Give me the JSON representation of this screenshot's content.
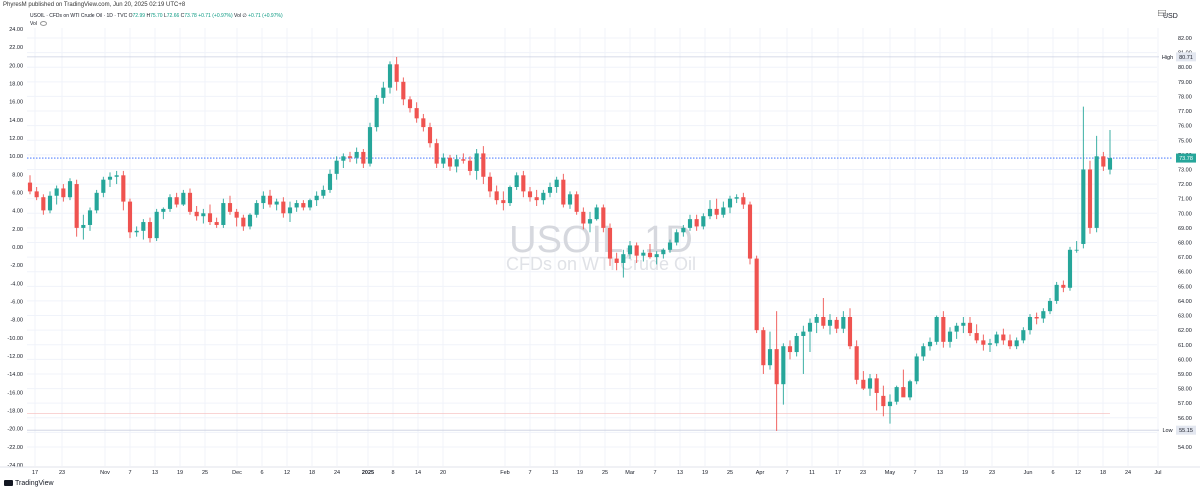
{
  "header": {
    "publisher": "PhyresM published on TradingView.com, Jun 20, 2025 02:19 UTC+8",
    "symbol": "USOIL · CFDs on WTI Crude Oil · 1D · TVC",
    "o_label": "O",
    "o_value": "72.99",
    "h_label": "H",
    "h_value": "75.70",
    "l_label": "L",
    "l_value": "72.66",
    "c_label": "C",
    "c_value": "73.78",
    "change": "+0.71 (+0.97%)",
    "vol_label": "Vol",
    "vol_dot": "∅",
    "vol_change": "+0.71 (+0.97%)",
    "vol_row": "Vol"
  },
  "currency": "USD",
  "watermark": {
    "symbol": "USOIL, 1D",
    "description": "CFDs on WTI Crude Oil"
  },
  "footer": {
    "brand": "TradingView"
  },
  "colors": {
    "up": "#26a69a",
    "down": "#ef5350",
    "grid": "#f0f3fa",
    "price_line": "#2962ff",
    "badge": "#26a69a",
    "high_low_line": "#c9cfe0",
    "red_line": "#f7c5c5"
  },
  "chart_data": {
    "type": "candlestick",
    "right_axis": {
      "min": 54.0,
      "max": 82.0,
      "step": 1.0,
      "labels": [
        "82.00",
        "81.00",
        "80.00",
        "79.00",
        "78.00",
        "77.00",
        "76.00",
        "75.00",
        "74.00",
        "73.00",
        "72.00",
        "71.00",
        "70.00",
        "69.00",
        "68.00",
        "67.00",
        "66.00",
        "65.00",
        "64.00",
        "63.00",
        "62.00",
        "61.00",
        "60.00",
        "59.00",
        "58.00",
        "57.00",
        "56.00",
        "55.00",
        "54.00"
      ]
    },
    "left_axis": {
      "labels": [
        "24.00",
        "22.00",
        "20.00",
        "18.00",
        "16.00",
        "14.00",
        "12.00",
        "10.00",
        "8.00",
        "6.00",
        "4.00",
        "2.00",
        "0.00",
        "-2.00",
        "-4.00",
        "-6.00",
        "-8.00",
        "-10.00",
        "-12.00",
        "-14.00",
        "-16.00",
        "-18.00",
        "-20.00",
        "-22.00",
        "-24.00"
      ]
    },
    "x_tick_labels": [
      "17",
      "23",
      "Nov",
      "7",
      "13",
      "19",
      "25",
      "Dec",
      "6",
      "12",
      "18",
      "24",
      "2025",
      "8",
      "14",
      "20",
      "Feb",
      "7",
      "13",
      "19",
      "25",
      "Mar",
      "7",
      "13",
      "19",
      "25",
      "Apr",
      "7",
      "11",
      "17",
      "23",
      "May",
      "7",
      "13",
      "19",
      "23",
      "Jun",
      "6",
      "12",
      "18",
      "24",
      "Jul"
    ],
    "badges": {
      "high": {
        "label": "High",
        "value": "80.71"
      },
      "last": {
        "value": "73.78"
      },
      "low": {
        "label": "Low",
        "value": "55.15"
      }
    },
    "candles": [
      [
        72.1,
        72.6,
        71.3,
        71.5
      ],
      [
        71.5,
        71.8,
        70.9,
        71.1
      ],
      [
        71.1,
        71.3,
        69.9,
        70.2
      ],
      [
        70.2,
        71.5,
        70.0,
        71.2
      ],
      [
        71.2,
        71.9,
        70.6,
        71.7
      ],
      [
        71.7,
        72.0,
        70.8,
        71.1
      ],
      [
        71.1,
        72.4,
        70.9,
        72.2
      ],
      [
        72.0,
        72.3,
        68.4,
        69.0
      ],
      [
        69.0,
        69.9,
        68.2,
        69.2
      ],
      [
        69.2,
        70.4,
        68.8,
        70.2
      ],
      [
        70.2,
        71.6,
        70.0,
        71.4
      ],
      [
        71.4,
        72.5,
        71.1,
        72.3
      ],
      [
        72.3,
        72.8,
        71.8,
        72.5
      ],
      [
        72.5,
        72.9,
        72.0,
        72.6
      ],
      [
        72.6,
        72.9,
        70.2,
        70.8
      ],
      [
        70.8,
        71.0,
        68.3,
        68.7
      ],
      [
        68.7,
        69.1,
        68.4,
        68.8
      ],
      [
        68.8,
        69.6,
        68.2,
        69.4
      ],
      [
        69.4,
        69.7,
        68.0,
        68.3
      ],
      [
        68.3,
        70.3,
        68.1,
        70.1
      ],
      [
        70.1,
        70.4,
        69.6,
        70.3
      ],
      [
        70.3,
        71.3,
        70.1,
        71.1
      ],
      [
        71.1,
        71.4,
        70.4,
        70.6
      ],
      [
        70.6,
        71.6,
        70.5,
        71.4
      ],
      [
        71.4,
        71.7,
        69.9,
        70.1
      ],
      [
        70.1,
        70.5,
        69.5,
        69.8
      ],
      [
        69.8,
        70.3,
        69.3,
        70.0
      ],
      [
        70.0,
        70.6,
        69.2,
        69.4
      ],
      [
        69.4,
        69.7,
        69.0,
        69.2
      ],
      [
        69.2,
        71.0,
        69.0,
        70.7
      ],
      [
        70.7,
        71.2,
        69.9,
        70.1
      ],
      [
        70.1,
        70.3,
        69.1,
        69.7
      ],
      [
        69.7,
        69.9,
        68.8,
        69.1
      ],
      [
        69.1,
        70.0,
        68.9,
        69.9
      ],
      [
        69.9,
        70.9,
        69.7,
        70.7
      ],
      [
        70.7,
        71.5,
        70.3,
        71.2
      ],
      [
        71.2,
        71.6,
        70.4,
        70.6
      ],
      [
        70.6,
        71.0,
        70.2,
        70.8
      ],
      [
        70.8,
        71.1,
        69.7,
        70.0
      ],
      [
        70.0,
        70.8,
        69.4,
        70.4
      ],
      [
        70.4,
        70.9,
        70.1,
        70.7
      ],
      [
        70.7,
        70.9,
        70.2,
        70.4
      ],
      [
        70.4,
        71.0,
        70.2,
        70.9
      ],
      [
        70.9,
        71.5,
        70.5,
        71.2
      ],
      [
        71.2,
        71.9,
        71.0,
        71.6
      ],
      [
        71.6,
        73.0,
        71.4,
        72.7
      ],
      [
        72.7,
        73.9,
        72.3,
        73.6
      ],
      [
        73.6,
        74.1,
        73.1,
        73.9
      ],
      [
        73.9,
        74.2,
        73.5,
        73.8
      ],
      [
        73.8,
        74.5,
        73.4,
        74.2
      ],
      [
        74.2,
        74.4,
        73.1,
        73.4
      ],
      [
        73.4,
        76.2,
        73.2,
        75.9
      ],
      [
        75.9,
        78.1,
        75.6,
        77.9
      ],
      [
        77.9,
        79.0,
        77.5,
        78.6
      ],
      [
        78.6,
        80.4,
        78.2,
        80.2
      ],
      [
        80.2,
        80.7,
        78.4,
        79.0
      ],
      [
        79.0,
        79.3,
        77.4,
        77.8
      ],
      [
        77.8,
        78.0,
        76.9,
        77.2
      ],
      [
        77.2,
        77.6,
        76.2,
        76.5
      ],
      [
        76.5,
        76.8,
        75.6,
        75.9
      ],
      [
        75.9,
        76.2,
        74.5,
        74.8
      ],
      [
        74.8,
        75.1,
        73.1,
        73.4
      ],
      [
        73.4,
        74.1,
        73.1,
        73.8
      ],
      [
        73.8,
        74.0,
        72.9,
        73.2
      ],
      [
        73.2,
        74.0,
        72.8,
        73.7
      ],
      [
        73.7,
        74.1,
        73.4,
        73.6
      ],
      [
        73.6,
        73.9,
        72.6,
        72.9
      ],
      [
        72.9,
        74.4,
        72.3,
        74.1
      ],
      [
        74.1,
        74.6,
        72.0,
        72.5
      ],
      [
        72.5,
        72.8,
        71.1,
        71.5
      ],
      [
        71.5,
        71.9,
        70.6,
        70.9
      ],
      [
        70.9,
        71.5,
        70.2,
        70.7
      ],
      [
        70.7,
        71.9,
        70.5,
        71.8
      ],
      [
        71.8,
        72.8,
        71.6,
        72.6
      ],
      [
        72.6,
        72.9,
        71.1,
        71.5
      ],
      [
        71.5,
        71.8,
        70.8,
        71.1
      ],
      [
        71.1,
        71.6,
        70.5,
        70.9
      ],
      [
        70.9,
        71.6,
        70.6,
        71.4
      ],
      [
        71.4,
        72.1,
        71.1,
        71.8
      ],
      [
        71.8,
        72.5,
        71.4,
        72.3
      ],
      [
        72.3,
        72.7,
        70.4,
        70.6
      ],
      [
        70.6,
        71.5,
        70.3,
        71.3
      ],
      [
        71.3,
        71.5,
        69.9,
        70.1
      ],
      [
        70.1,
        70.4,
        68.9,
        69.3
      ],
      [
        69.3,
        70.1,
        68.7,
        69.6
      ],
      [
        69.6,
        70.6,
        69.5,
        70.4
      ],
      [
        70.4,
        70.6,
        68.7,
        69.0
      ],
      [
        69.0,
        69.3,
        66.4,
        66.9
      ],
      [
        66.9,
        67.3,
        66.1,
        66.6
      ],
      [
        66.6,
        67.5,
        65.6,
        67.2
      ],
      [
        67.2,
        68.1,
        66.9,
        67.8
      ],
      [
        67.8,
        68.0,
        66.6,
        67.1
      ],
      [
        67.1,
        67.5,
        66.7,
        67.3
      ],
      [
        67.3,
        67.9,
        66.9,
        67.0
      ],
      [
        67.0,
        67.4,
        66.5,
        67.2
      ],
      [
        67.2,
        67.6,
        66.9,
        67.5
      ],
      [
        67.5,
        68.2,
        67.3,
        68.0
      ],
      [
        68.0,
        68.9,
        67.8,
        68.7
      ],
      [
        68.7,
        69.2,
        68.4,
        69.0
      ],
      [
        69.0,
        69.9,
        68.8,
        69.6
      ],
      [
        69.6,
        69.9,
        68.8,
        69.1
      ],
      [
        69.1,
        70.0,
        68.9,
        69.8
      ],
      [
        69.8,
        70.9,
        69.6,
        70.3
      ],
      [
        70.3,
        71.0,
        69.6,
        69.9
      ],
      [
        69.9,
        70.8,
        69.7,
        70.4
      ],
      [
        70.4,
        71.2,
        70.0,
        71.0
      ],
      [
        71.0,
        71.3,
        70.7,
        71.1
      ],
      [
        71.1,
        71.4,
        70.3,
        70.6
      ],
      [
        70.6,
        70.8,
        66.5,
        66.9
      ],
      [
        66.9,
        67.1,
        61.8,
        62.0
      ],
      [
        62.0,
        62.2,
        59.0,
        59.6
      ],
      [
        59.6,
        61.9,
        59.3,
        60.7
      ],
      [
        60.7,
        63.3,
        55.1,
        58.3
      ],
      [
        58.3,
        61.1,
        56.9,
        60.9
      ],
      [
        60.9,
        61.3,
        60.0,
        60.5
      ],
      [
        60.5,
        61.8,
        60.2,
        61.6
      ],
      [
        61.6,
        62.3,
        59.0,
        61.9
      ],
      [
        61.9,
        62.8,
        60.5,
        62.5
      ],
      [
        62.5,
        63.1,
        61.8,
        62.9
      ],
      [
        62.9,
        64.2,
        62.1,
        62.3
      ],
      [
        62.3,
        63.1,
        61.7,
        62.7
      ],
      [
        62.7,
        62.9,
        61.8,
        62.1
      ],
      [
        62.1,
        63.3,
        61.8,
        62.9
      ],
      [
        62.9,
        63.5,
        60.7,
        60.9
      ],
      [
        60.9,
        61.3,
        58.3,
        58.6
      ],
      [
        58.6,
        59.2,
        57.9,
        58.0
      ],
      [
        58.0,
        59.0,
        57.5,
        58.7
      ],
      [
        58.7,
        59.0,
        56.5,
        57.7
      ],
      [
        57.5,
        58.2,
        56.1,
        56.8
      ],
      [
        56.8,
        57.6,
        55.6,
        57.1
      ],
      [
        57.1,
        58.2,
        56.9,
        58.1
      ],
      [
        58.1,
        59.3,
        57.5,
        57.4
      ],
      [
        57.4,
        58.6,
        57.2,
        58.5
      ],
      [
        58.5,
        60.4,
        58.3,
        60.2
      ],
      [
        60.2,
        61.1,
        59.9,
        60.9
      ],
      [
        60.9,
        61.5,
        60.6,
        61.2
      ],
      [
        61.2,
        63.0,
        61.0,
        62.9
      ],
      [
        62.9,
        63.3,
        60.8,
        61.2
      ],
      [
        61.2,
        62.2,
        60.8,
        61.9
      ],
      [
        61.9,
        62.5,
        61.4,
        62.3
      ],
      [
        62.3,
        62.9,
        61.8,
        62.5
      ],
      [
        62.5,
        62.9,
        61.6,
        61.8
      ],
      [
        61.8,
        62.4,
        61.1,
        61.3
      ],
      [
        61.3,
        61.7,
        60.6,
        61.0
      ],
      [
        61.0,
        61.4,
        60.5,
        61.1
      ],
      [
        61.1,
        61.9,
        60.9,
        61.7
      ],
      [
        61.7,
        62.1,
        61.0,
        61.3
      ],
      [
        61.3,
        61.7,
        60.7,
        60.9
      ],
      [
        60.9,
        61.5,
        60.7,
        61.3
      ],
      [
        61.3,
        62.2,
        61.1,
        62.0
      ],
      [
        62.0,
        63.1,
        61.7,
        62.9
      ],
      [
        62.9,
        63.2,
        62.4,
        62.8
      ],
      [
        62.8,
        63.5,
        62.5,
        63.3
      ],
      [
        63.3,
        64.2,
        63.1,
        64.0
      ],
      [
        64.0,
        65.3,
        63.8,
        65.1
      ],
      [
        65.1,
        65.4,
        64.6,
        64.9
      ],
      [
        64.9,
        67.7,
        64.7,
        67.5
      ],
      [
        67.5,
        68.1,
        67.3,
        67.5
      ],
      [
        67.9,
        77.3,
        67.6,
        73.0
      ],
      [
        73.0,
        73.6,
        68.6,
        69.0
      ],
      [
        69.0,
        75.3,
        68.7,
        73.9
      ],
      [
        73.9,
        74.2,
        72.9,
        73.2
      ],
      [
        72.99,
        75.7,
        72.66,
        73.78
      ]
    ]
  }
}
